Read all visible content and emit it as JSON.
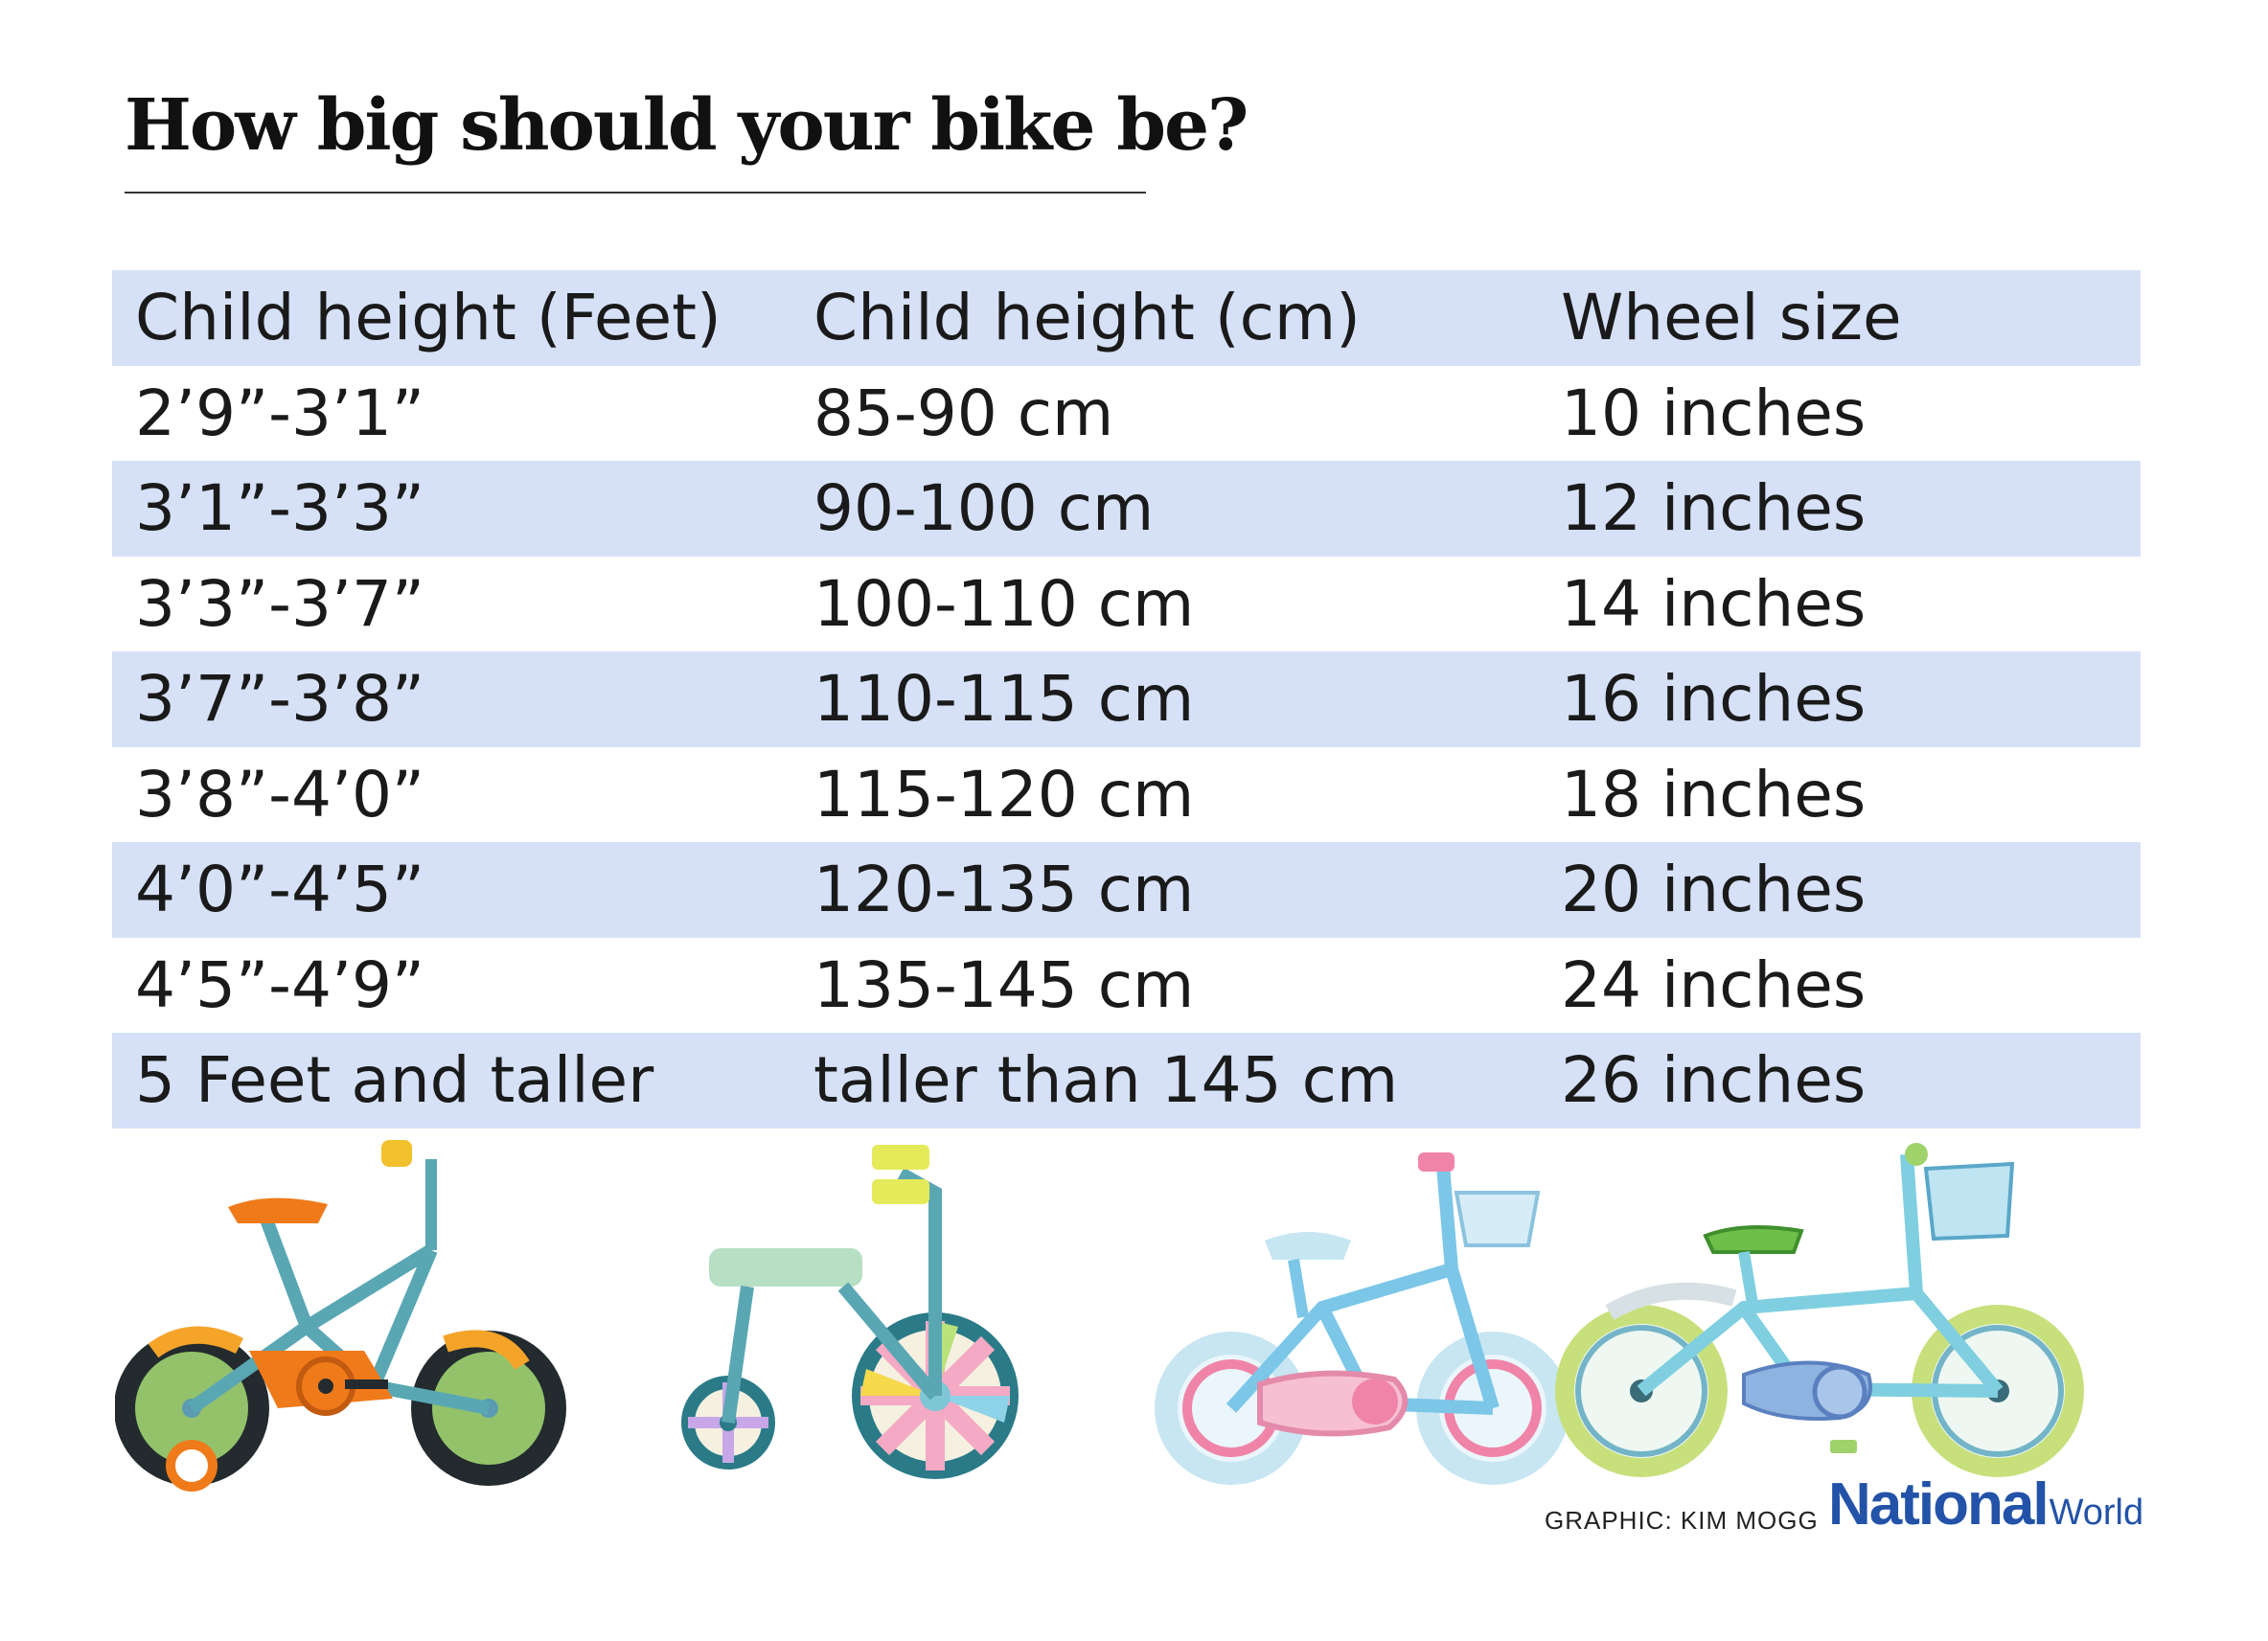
{
  "title": "How big should your bike be?",
  "table": {
    "headers": [
      "Child height (Feet)",
      "Child height (cm)",
      "Wheel size"
    ],
    "rows": [
      [
        "2’9”-3’1”",
        "85-90 cm",
        "10 inches"
      ],
      [
        "3’1”-3’3”",
        "90-100 cm",
        "12 inches"
      ],
      [
        "3’3”-3’7”",
        "100-110 cm",
        "14 inches"
      ],
      [
        "3’7”-3’8”",
        "110-115 cm",
        "16 inches"
      ],
      [
        "3’8”-4’0”",
        "115-120 cm",
        "18 inches"
      ],
      [
        "4’0”-4’5”",
        "120-135 cm",
        "20 inches"
      ],
      [
        "4’5”-4’9”",
        "135-145 cm",
        "24 inches"
      ],
      [
        "5 Feet and taller",
        "taller than 145 cm",
        "26 inches"
      ]
    ]
  },
  "credit": "GRAPHIC: KIM MOGG",
  "logo": {
    "part1": "National",
    "part2": "World"
  },
  "colors": {
    "row_shade": "#d6e1f7",
    "logo_blue": "#2353a8"
  },
  "icons": [
    "training-wheel-bike-icon",
    "tricycle-icon",
    "pink-girls-bike-icon",
    "green-basket-bike-icon"
  ]
}
